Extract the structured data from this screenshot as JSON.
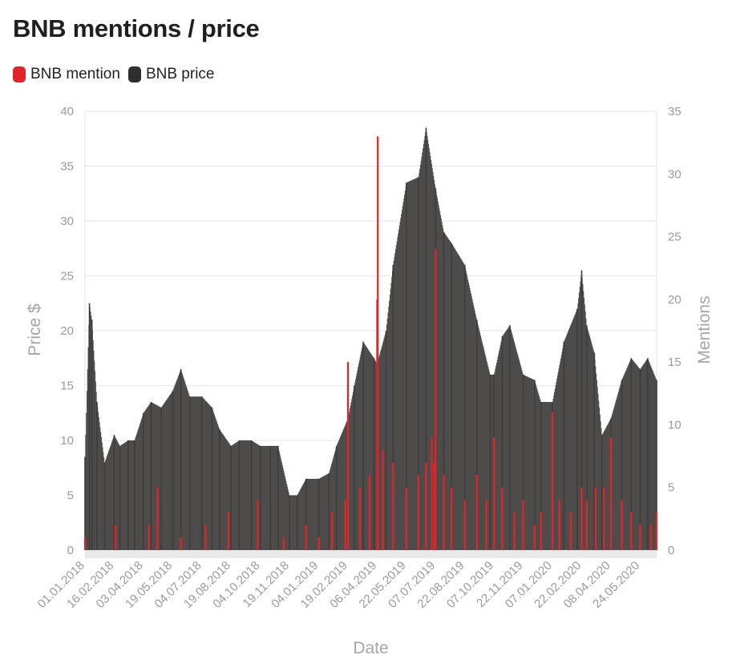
{
  "chart_data": {
    "type": "bar",
    "title": "BNB mentions / price",
    "legend": [
      {
        "name": "BNB mention",
        "color": "#e0242b"
      },
      {
        "name": "BNB price",
        "color": "#333333"
      }
    ],
    "xlabel": "Date",
    "ylabel_left": "Price $",
    "ylabel_right": "Mentions",
    "ylim_left": [
      0,
      40
    ],
    "ylim_right": [
      0,
      35
    ],
    "yticks_left": [
      0,
      5,
      10,
      15,
      20,
      25,
      30,
      35,
      40
    ],
    "yticks_right": [
      0,
      5,
      10,
      15,
      20,
      25,
      30,
      35
    ],
    "xlim": [
      "01.01.2018",
      "19.06.2020"
    ],
    "x_ticks": [
      "01.01.2018",
      "16.02.2018",
      "03.04.2018",
      "19.05.2018",
      "04.07.2018",
      "19.08.2018",
      "04.10.2018",
      "19.11.2018",
      "04.01.2019",
      "19.02.2019",
      "06.04.2019",
      "22.05.2019",
      "07.07.2019",
      "22.08.2019",
      "07.10.2019",
      "22.11.2019",
      "07.01.2020",
      "22.02.2020",
      "08.04.2020",
      "24.05.2020"
    ],
    "series": [
      {
        "name": "BNB price",
        "axis": "left",
        "color": "#333333",
        "x": [
          "01.01.2018",
          "08.01.2018",
          "12.01.2018",
          "20.01.2018",
          "01.02.2018",
          "16.02.2018",
          "25.02.2018",
          "10.03.2018",
          "20.03.2018",
          "03.04.2018",
          "15.04.2018",
          "01.05.2018",
          "19.05.2018",
          "01.06.2018",
          "15.06.2018",
          "04.07.2018",
          "20.07.2018",
          "01.08.2018",
          "19.08.2018",
          "01.09.2018",
          "20.09.2018",
          "04.10.2018",
          "20.10.2018",
          "01.11.2018",
          "19.11.2018",
          "01.12.2018",
          "15.12.2018",
          "04.01.2019",
          "20.01.2019",
          "01.02.2019",
          "19.02.2019",
          "01.03.2019",
          "15.03.2019",
          "01.04.2019",
          "06.04.2019",
          "20.04.2019",
          "01.05.2019",
          "22.05.2019",
          "10.06.2019",
          "22.06.2019",
          "07.07.2019",
          "20.07.2019",
          "01.08.2019",
          "22.08.2019",
          "10.09.2019",
          "01.10.2019",
          "07.10.2019",
          "20.10.2019",
          "01.11.2019",
          "22.11.2019",
          "10.12.2019",
          "20.12.2019",
          "07.01.2020",
          "25.01.2020",
          "15.02.2020",
          "22.02.2020",
          "01.03.2020",
          "13.03.2020",
          "25.03.2020",
          "08.04.2020",
          "25.04.2020",
          "10.05.2020",
          "24.05.2020",
          "05.06.2020",
          "19.06.2020"
        ],
        "values": [
          8.5,
          22.5,
          21.0,
          13.5,
          8.0,
          10.5,
          9.5,
          10.0,
          10.0,
          12.5,
          13.5,
          13.0,
          14.5,
          16.5,
          14.0,
          14.0,
          13.0,
          11.0,
          9.5,
          10.0,
          10.0,
          9.5,
          9.5,
          9.5,
          5.0,
          5.0,
          6.5,
          6.5,
          7.0,
          9.5,
          12.0,
          15.0,
          19.0,
          17.5,
          17.0,
          20.0,
          26.0,
          33.5,
          34.0,
          38.5,
          33.0,
          29.0,
          28.0,
          26.0,
          21.0,
          16.0,
          16.0,
          19.5,
          20.5,
          16.0,
          15.5,
          13.5,
          13.5,
          19.0,
          22.0,
          25.5,
          20.5,
          18.0,
          10.5,
          12.0,
          15.5,
          17.5,
          16.5,
          17.5,
          15.5
        ]
      },
      {
        "name": "BNB mention",
        "axis": "right",
        "color": "#e0242b",
        "x": [
          "01.01.2018",
          "18.02.2018",
          "12.04.2018",
          "25.04.2018",
          "01.06.2018",
          "10.07.2018",
          "15.08.2018",
          "30.09.2018",
          "10.11.2018",
          "15.12.2018",
          "04.01.2019",
          "25.01.2019",
          "15.02.2019",
          "19.02.2019",
          "10.03.2019",
          "25.03.2019",
          "06.04.2019",
          "07.04.2019",
          "15.04.2019",
          "01.05.2019",
          "22.05.2019",
          "10.06.2019",
          "22.06.2019",
          "01.07.2019",
          "05.07.2019",
          "07.07.2019",
          "20.07.2019",
          "01.08.2019",
          "22.08.2019",
          "10.09.2019",
          "25.09.2019",
          "07.10.2019",
          "20.10.2019",
          "08.11.2019",
          "22.11.2019",
          "10.12.2019",
          "20.12.2019",
          "07.01.2020",
          "18.01.2020",
          "05.02.2020",
          "22.02.2020",
          "01.03.2020",
          "15.03.2020",
          "28.03.2020",
          "08.04.2020",
          "25.04.2020",
          "10.05.2020",
          "24.05.2020",
          "10.06.2020",
          "19.06.2020"
        ],
        "values": [
          1,
          2,
          2,
          5,
          1,
          2,
          3,
          4,
          1,
          2,
          1,
          3,
          4,
          15,
          5,
          6,
          20,
          33,
          8,
          7,
          5,
          6,
          7,
          9,
          7,
          24,
          6,
          5,
          4,
          6,
          4,
          9,
          5,
          3,
          4,
          2,
          3,
          11,
          4,
          3,
          5,
          4,
          5,
          5,
          9,
          4,
          3,
          2,
          2,
          3
        ]
      }
    ]
  }
}
